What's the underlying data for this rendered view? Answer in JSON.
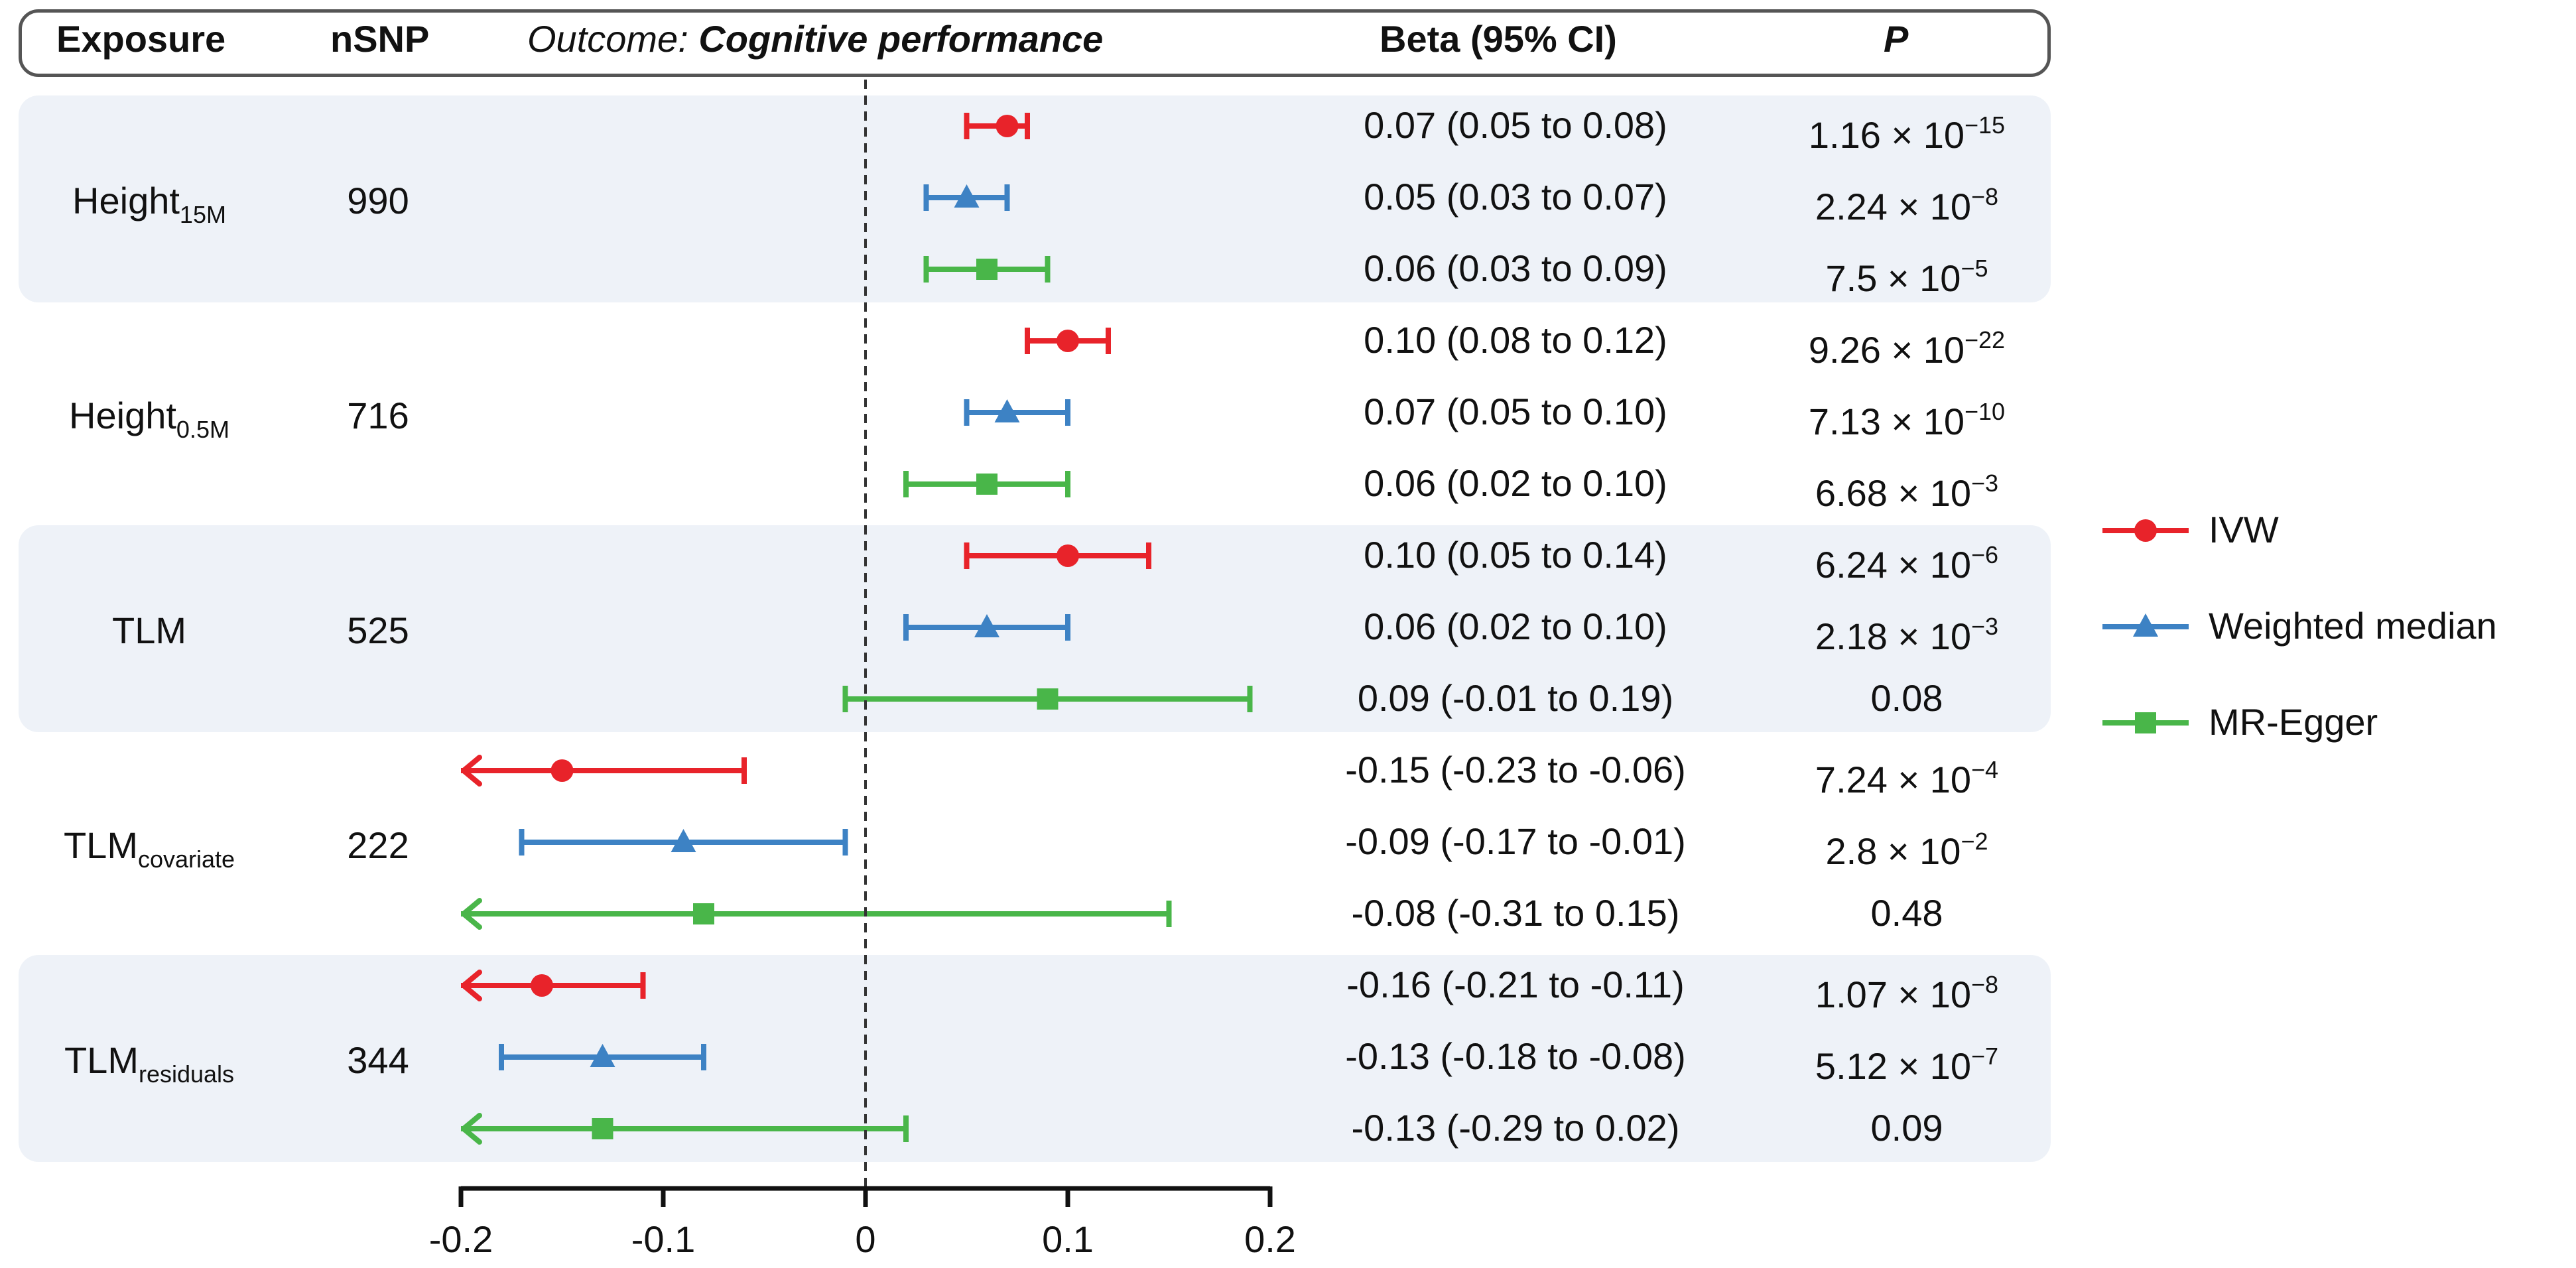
{
  "header": {
    "exposure": "Exposure",
    "nsnp": "nSNP",
    "outcome_prefix": "Outcome: ",
    "outcome_name": "Cognitive performance",
    "beta": "Beta (95% CI)",
    "p": "P"
  },
  "colors": {
    "ivw": "#e8232a",
    "weighted_median": "#3d82c4",
    "mr_egger": "#49b649",
    "band": "#eef2f8"
  },
  "chart_data": {
    "type": "forest",
    "xlim": [
      -0.2,
      0.2
    ],
    "ticks": [
      "-0.2",
      "-0.1",
      "0",
      "0.1",
      "0.2"
    ],
    "tick_values": [
      -0.2,
      -0.1,
      0,
      0.1,
      0.2
    ],
    "reference_line": 0,
    "legend": [
      {
        "key": "ivw",
        "label": "IVW",
        "marker": "circle"
      },
      {
        "key": "weighted_median",
        "label": "Weighted median",
        "marker": "triangle"
      },
      {
        "key": "mr_egger",
        "label": "MR-Egger",
        "marker": "square"
      }
    ],
    "groups": [
      {
        "exposure_base": "Height",
        "exposure_sub": "15M",
        "nsnp": "990",
        "shaded": true,
        "rows": [
          {
            "method": "ivw",
            "beta": 0.07,
            "lo": 0.05,
            "hi": 0.08,
            "beta_text": "0.07 (0.05 to 0.08)",
            "p_mant": "1.16 × 10",
            "p_exp": "−15"
          },
          {
            "method": "weighted_median",
            "beta": 0.05,
            "lo": 0.03,
            "hi": 0.07,
            "beta_text": "0.05 (0.03 to 0.07)",
            "p_mant": "2.24 × 10",
            "p_exp": "−8"
          },
          {
            "method": "mr_egger",
            "beta": 0.06,
            "lo": 0.03,
            "hi": 0.09,
            "beta_text": "0.06 (0.03 to 0.09)",
            "p_mant": "7.5 × 10",
            "p_exp": "−5"
          }
        ]
      },
      {
        "exposure_base": "Height",
        "exposure_sub": "0.5M",
        "nsnp": "716",
        "shaded": false,
        "rows": [
          {
            "method": "ivw",
            "beta": 0.1,
            "lo": 0.08,
            "hi": 0.12,
            "beta_text": "0.10 (0.08 to 0.12)",
            "p_mant": "9.26 × 10",
            "p_exp": "−22"
          },
          {
            "method": "weighted_median",
            "beta": 0.07,
            "lo": 0.05,
            "hi": 0.1,
            "beta_text": "0.07 (0.05 to 0.10)",
            "p_mant": "7.13 × 10",
            "p_exp": "−10"
          },
          {
            "method": "mr_egger",
            "beta": 0.06,
            "lo": 0.02,
            "hi": 0.1,
            "beta_text": "0.06 (0.02 to 0.10)",
            "p_mant": "6.68 × 10",
            "p_exp": "−3"
          }
        ]
      },
      {
        "exposure_base": "TLM",
        "exposure_sub": "",
        "nsnp": "525",
        "shaded": true,
        "rows": [
          {
            "method": "ivw",
            "beta": 0.1,
            "lo": 0.05,
            "hi": 0.14,
            "beta_text": "0.10 (0.05 to 0.14)",
            "p_mant": "6.24 × 10",
            "p_exp": "−6"
          },
          {
            "method": "weighted_median",
            "beta": 0.06,
            "lo": 0.02,
            "hi": 0.1,
            "beta_text": "0.06 (0.02 to 0.10)",
            "p_mant": "2.18 × 10",
            "p_exp": "−3"
          },
          {
            "method": "mr_egger",
            "beta": 0.09,
            "lo": -0.01,
            "hi": 0.19,
            "beta_text": "0.09 (-0.01 to 0.19)",
            "p_mant": "0.08",
            "p_exp": ""
          }
        ]
      },
      {
        "exposure_base": "TLM",
        "exposure_sub": "covariate",
        "nsnp": "222",
        "shaded": false,
        "rows": [
          {
            "method": "ivw",
            "beta": -0.15,
            "lo": -0.23,
            "hi": -0.06,
            "beta_text": "-0.15 (-0.23 to -0.06)",
            "p_mant": "7.24 × 10",
            "p_exp": "−4"
          },
          {
            "method": "weighted_median",
            "beta": -0.09,
            "lo": -0.17,
            "hi": -0.01,
            "beta_text": "-0.09 (-0.17 to -0.01)",
            "p_mant": "2.8 × 10",
            "p_exp": "−2"
          },
          {
            "method": "mr_egger",
            "beta": -0.08,
            "lo": -0.31,
            "hi": 0.15,
            "beta_text": "-0.08 (-0.31 to 0.15)",
            "p_mant": "0.48",
            "p_exp": ""
          }
        ]
      },
      {
        "exposure_base": "TLM",
        "exposure_sub": "residuals",
        "nsnp": "344",
        "shaded": true,
        "rows": [
          {
            "method": "ivw",
            "beta": -0.16,
            "lo": -0.21,
            "hi": -0.11,
            "beta_text": "-0.16 (-0.21 to -0.11)",
            "p_mant": "1.07 × 10",
            "p_exp": "−8"
          },
          {
            "method": "weighted_median",
            "beta": -0.13,
            "lo": -0.18,
            "hi": -0.08,
            "beta_text": "-0.13 (-0.18 to -0.08)",
            "p_mant": "5.12 × 10",
            "p_exp": "−7"
          },
          {
            "method": "mr_egger",
            "beta": -0.13,
            "lo": -0.29,
            "hi": 0.02,
            "beta_text": "-0.13 (-0.29 to 0.02)",
            "p_mant": "0.09",
            "p_exp": ""
          }
        ]
      }
    ]
  }
}
